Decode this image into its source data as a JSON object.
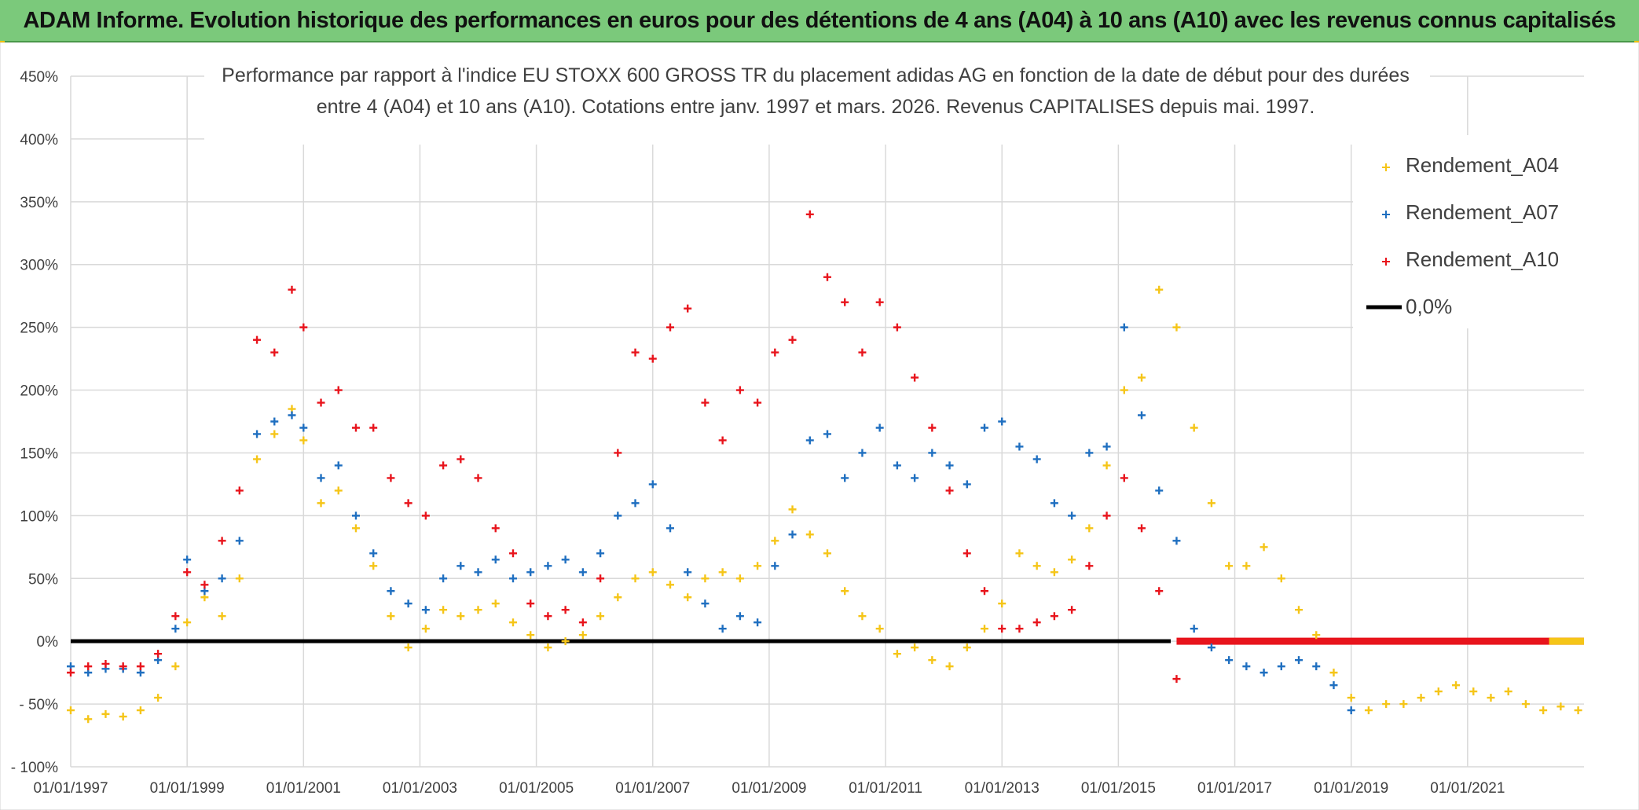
{
  "banner": {
    "title": "ADAM Informe. Evolution historique des performances en euros pour des détentions de 4 ans (A04) à 10 ans (A10) avec les revenus connus capitalisés"
  },
  "colors": {
    "banner_bg": "#7bc97b",
    "a04": "#f5c518",
    "a07": "#1f6fc0",
    "a10": "#e8141c",
    "zero": "#000000",
    "grid": "#d9d9d9"
  },
  "chart_data": {
    "type": "scatter",
    "title_lines": [
      "Performance par rapport à l'indice EU STOXX 600 GROSS TR  du placement adidas AG en fonction de la date de début pour des durées",
      "entre 4 (A04) et 10 ans (A10). Cotations entre janv. 1997 et mars. 2026. Revenus CAPITALISES depuis mai. 1997."
    ],
    "xlim": [
      1997.0,
      2023.0
    ],
    "ylim": [
      -100,
      450
    ],
    "y_ticks": [
      450,
      400,
      350,
      300,
      250,
      200,
      150,
      100,
      50,
      0,
      -50,
      -100
    ],
    "y_tick_labels": [
      "450%",
      "400%",
      "350%",
      "300%",
      "250%",
      "200%",
      "150%",
      "100%",
      "50%",
      "0%",
      "- 50%",
      "- 100%"
    ],
    "x_ticks": [
      1997,
      1999,
      2001,
      2003,
      2005,
      2007,
      2009,
      2011,
      2013,
      2015,
      2017,
      2019,
      2021
    ],
    "x_tick_labels": [
      "01/01/1997",
      "01/01/1999",
      "01/01/2001",
      "01/01/2003",
      "01/01/2005",
      "01/01/2007",
      "01/01/2009",
      "01/01/2011",
      "01/01/2013",
      "01/01/2015",
      "01/01/2017",
      "01/01/2019",
      "01/01/2021"
    ],
    "legend_position": "top-right",
    "series": [
      {
        "name": "Rendement_A04",
        "color": "#f5c518",
        "marker": "plus",
        "x": [
          1997.0,
          1997.3,
          1997.6,
          1997.9,
          1998.2,
          1998.5,
          1998.8,
          1999.0,
          1999.3,
          1999.6,
          1999.9,
          2000.2,
          2000.5,
          2000.8,
          2001.0,
          2001.3,
          2001.6,
          2001.9,
          2002.2,
          2002.5,
          2002.8,
          2003.1,
          2003.4,
          2003.7,
          2004.0,
          2004.3,
          2004.6,
          2004.9,
          2005.2,
          2005.5,
          2005.8,
          2006.1,
          2006.4,
          2006.7,
          2007.0,
          2007.3,
          2007.6,
          2007.9,
          2008.2,
          2008.5,
          2008.8,
          2009.1,
          2009.4,
          2009.7,
          2010.0,
          2010.3,
          2010.6,
          2010.9,
          2011.2,
          2011.5,
          2011.8,
          2012.1,
          2012.4,
          2012.7,
          2013.0,
          2013.3,
          2013.6,
          2013.9,
          2014.2,
          2014.5,
          2014.8,
          2015.1,
          2015.4,
          2015.7,
          2016.0,
          2016.3,
          2016.6,
          2016.9,
          2017.2,
          2017.5,
          2017.8,
          2018.1,
          2018.4,
          2018.7,
          2019.0,
          2019.3,
          2019.6,
          2019.9,
          2020.2,
          2020.5,
          2020.8,
          2021.1,
          2021.4,
          2021.7,
          2022.0,
          2022.3,
          2022.6,
          2022.9
        ],
        "values": [
          -55,
          -62,
          -58,
          -60,
          -55,
          -45,
          -20,
          15,
          35,
          20,
          50,
          145,
          165,
          185,
          160,
          110,
          120,
          90,
          60,
          20,
          -5,
          10,
          25,
          20,
          25,
          30,
          15,
          5,
          -5,
          0,
          5,
          20,
          35,
          50,
          55,
          45,
          35,
          50,
          55,
          50,
          60,
          80,
          105,
          85,
          70,
          40,
          20,
          10,
          -10,
          -5,
          -15,
          -20,
          -5,
          10,
          30,
          70,
          60,
          55,
          65,
          90,
          140,
          200,
          210,
          280,
          250,
          170,
          110,
          60,
          60,
          75,
          50,
          25,
          5,
          -25,
          -45,
          -55,
          -50,
          -50,
          -45,
          -40,
          -35,
          -40,
          -45,
          -40,
          -50,
          -55,
          -52,
          -55
        ]
      },
      {
        "name": "Rendement_A07",
        "color": "#1f6fc0",
        "marker": "plus",
        "x": [
          1997.0,
          1997.3,
          1997.6,
          1997.9,
          1998.2,
          1998.5,
          1998.8,
          1999.0,
          1999.3,
          1999.6,
          1999.9,
          2000.2,
          2000.5,
          2000.8,
          2001.0,
          2001.3,
          2001.6,
          2001.9,
          2002.2,
          2002.5,
          2002.8,
          2003.1,
          2003.4,
          2003.7,
          2004.0,
          2004.3,
          2004.6,
          2004.9,
          2005.2,
          2005.5,
          2005.8,
          2006.1,
          2006.4,
          2006.7,
          2007.0,
          2007.3,
          2007.6,
          2007.9,
          2008.2,
          2008.5,
          2008.8,
          2009.1,
          2009.4,
          2009.7,
          2010.0,
          2010.3,
          2010.6,
          2010.9,
          2011.2,
          2011.5,
          2011.8,
          2012.1,
          2012.4,
          2012.7,
          2013.0,
          2013.3,
          2013.6,
          2013.9,
          2014.2,
          2014.5,
          2014.8,
          2015.1,
          2015.4,
          2015.7,
          2016.0,
          2016.3,
          2016.6,
          2016.9,
          2017.2,
          2017.5,
          2017.8,
          2018.1,
          2018.4,
          2018.7,
          2019.0
        ],
        "values": [
          -20,
          -25,
          -22,
          -22,
          -25,
          -15,
          10,
          65,
          40,
          50,
          80,
          165,
          175,
          180,
          170,
          130,
          140,
          100,
          70,
          40,
          30,
          25,
          50,
          60,
          55,
          65,
          50,
          55,
          60,
          65,
          55,
          70,
          100,
          110,
          125,
          90,
          55,
          30,
          10,
          20,
          15,
          60,
          85,
          160,
          165,
          130,
          150,
          170,
          140,
          130,
          150,
          140,
          125,
          170,
          175,
          155,
          145,
          110,
          100,
          150,
          155,
          250,
          180,
          120,
          80,
          10,
          -5,
          -15,
          -20,
          -25,
          -20,
          -15,
          -20,
          -35,
          -55
        ]
      },
      {
        "name": "Rendement_A10",
        "color": "#e8141c",
        "marker": "plus",
        "x": [
          1997.0,
          1997.3,
          1997.6,
          1997.9,
          1998.2,
          1998.5,
          1998.8,
          1999.0,
          1999.3,
          1999.6,
          1999.9,
          2000.2,
          2000.5,
          2000.8,
          2001.0,
          2001.3,
          2001.6,
          2001.9,
          2002.2,
          2002.5,
          2002.8,
          2003.1,
          2003.4,
          2003.7,
          2004.0,
          2004.3,
          2004.6,
          2004.9,
          2005.2,
          2005.5,
          2005.8,
          2006.1,
          2006.4,
          2006.7,
          2007.0,
          2007.3,
          2007.6,
          2007.9,
          2008.2,
          2008.5,
          2008.8,
          2009.1,
          2009.4,
          2009.7,
          2010.0,
          2010.3,
          2010.6,
          2010.9,
          2011.2,
          2011.5,
          2011.8,
          2012.1,
          2012.4,
          2012.7,
          2013.0,
          2013.3,
          2013.6,
          2013.9,
          2014.2,
          2014.5,
          2014.8,
          2015.1,
          2015.4,
          2015.7,
          2016.0
        ],
        "values": [
          -25,
          -20,
          -18,
          -20,
          -20,
          -10,
          20,
          55,
          45,
          80,
          120,
          240,
          230,
          280,
          250,
          190,
          200,
          170,
          170,
          130,
          110,
          100,
          140,
          145,
          130,
          90,
          70,
          30,
          20,
          25,
          15,
          50,
          150,
          230,
          225,
          250,
          265,
          190,
          160,
          200,
          190,
          230,
          240,
          340,
          290,
          270,
          230,
          270,
          250,
          210,
          170,
          120,
          70,
          40,
          10,
          10,
          15,
          20,
          25,
          60,
          100,
          130,
          90,
          40,
          -30
        ]
      }
    ],
    "reference_line": {
      "name": "0,0%",
      "value": 0,
      "color": "#000000",
      "x_start": 1997.0,
      "x_end": 2015.9
    },
    "flat_segments": [
      {
        "series": "Rendement_A10",
        "value": 0,
        "x_start": 2016.0,
        "x_end": 2023.0
      },
      {
        "series": "Rendement_A04",
        "value": 0,
        "x_start": 2022.4,
        "x_end": 2023.0
      }
    ]
  }
}
